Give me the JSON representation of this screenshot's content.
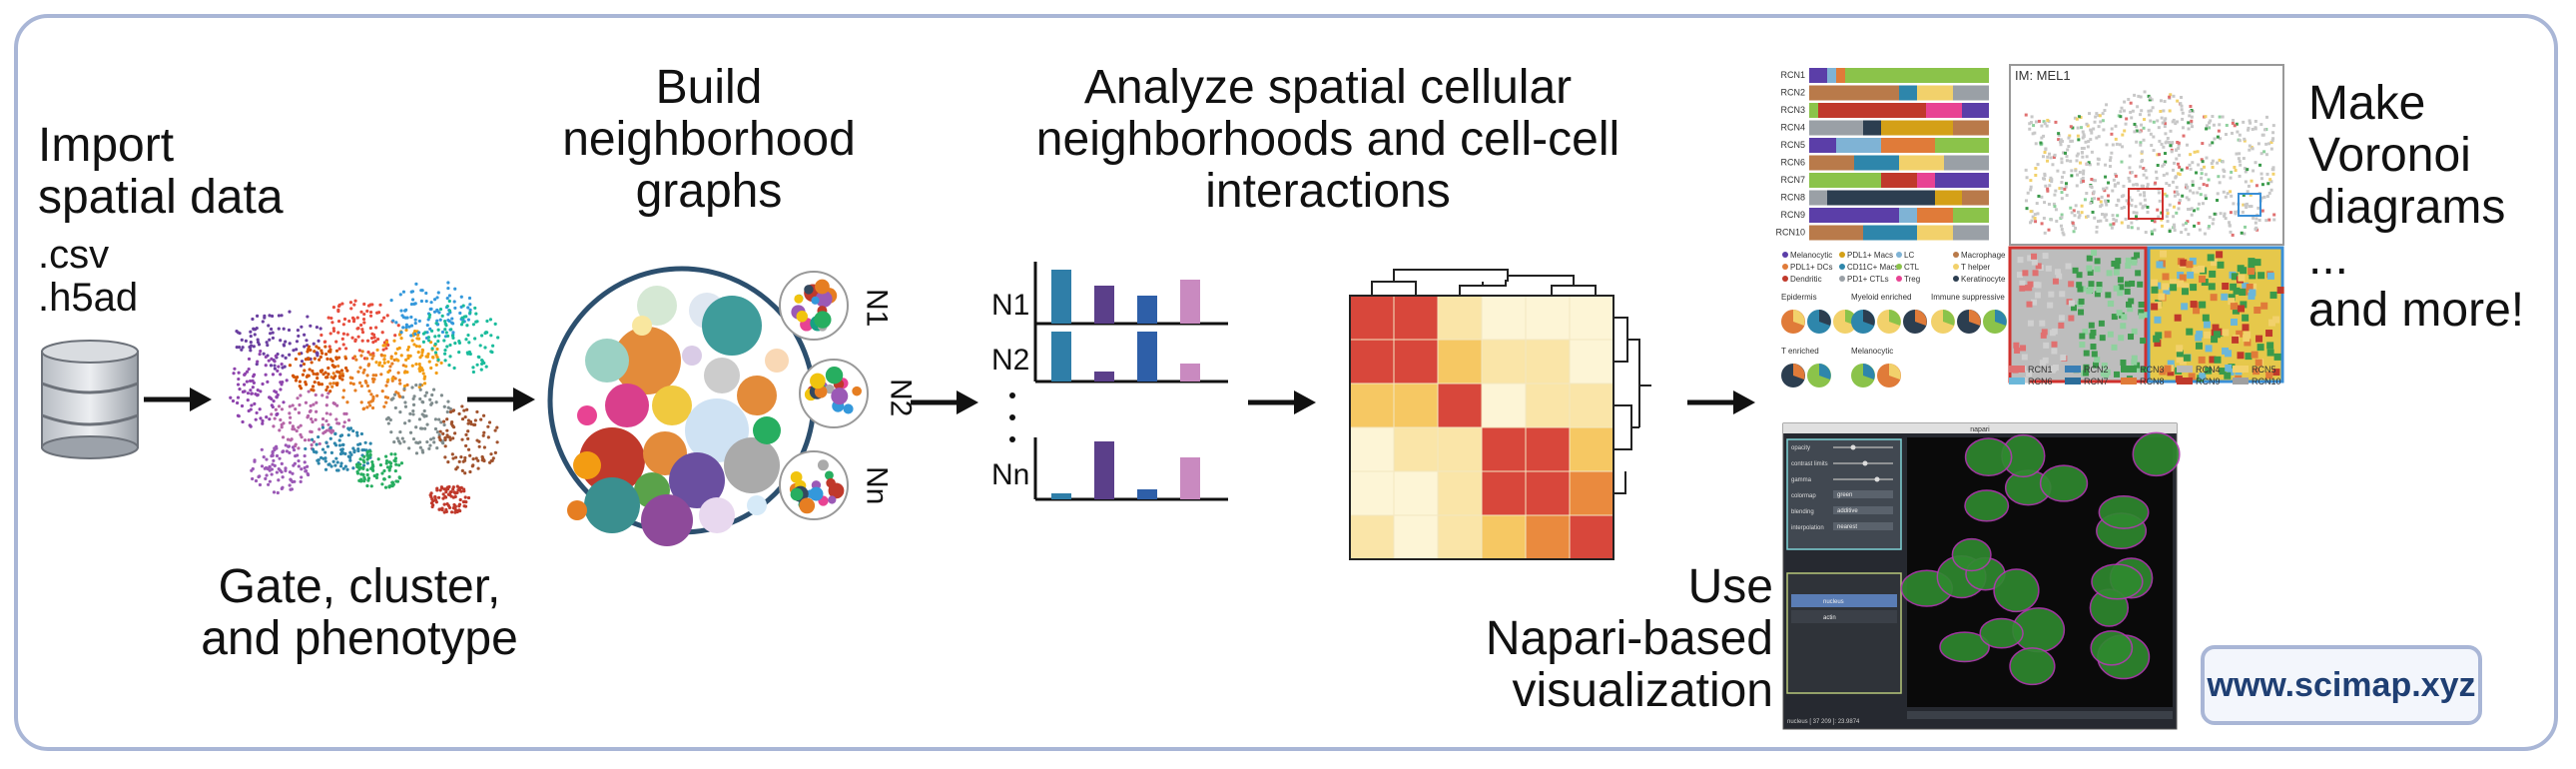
{
  "import": {
    "title_line1": "Import",
    "title_line2": "spatial data",
    "fmt1": ".csv",
    "fmt2": ".h5ad"
  },
  "gate": {
    "line1": "Gate, cluster,",
    "line2": "and phenotype"
  },
  "build": {
    "line1": "Build",
    "line2": "neighborhood",
    "line3": "graphs",
    "n_labels": [
      "N1",
      "N2",
      "Nn"
    ]
  },
  "analyze": {
    "line1": "Analyze spatial cellular",
    "line2": "neighborhoods and cell-cell",
    "line3": "interactions",
    "n_labels": [
      "N1",
      "N2",
      "Nn"
    ],
    "dots": ".\n.\n."
  },
  "voronoi": {
    "line1": "Make",
    "line2": "Voronoi",
    "line3": "diagrams",
    "line4": "...",
    "line5": "and more!",
    "im_label": "IM: MEL1"
  },
  "rcn": {
    "rows": [
      "RCN1",
      "RCN2",
      "RCN3",
      "RCN4",
      "RCN5",
      "RCN6",
      "RCN7",
      "RCN8",
      "RCN9",
      "RCN10"
    ],
    "legend": [
      "RCN1",
      "RCN2",
      "RCN3",
      "RCN4",
      "RCN5",
      "RCN6",
      "RCN7",
      "RCN8",
      "RCN9",
      "RCN10"
    ],
    "celltypes": [
      "Melanocytic",
      "PDL1+ Macs",
      "LC",
      "Macrophage",
      "PDL1+ DCs",
      "CD11C+ Macs",
      "CTL",
      "T helper",
      "Dendritic",
      "PD1+ CTLs",
      "Treg",
      "Keratinocyte"
    ],
    "pie_groups": [
      "Epidermis",
      "Myeloid enriched",
      "Immune suppressive",
      "T enriched",
      "Melanocytic"
    ],
    "colors": [
      "#5b3ea8",
      "#d4a017",
      "#7fb3d5",
      "#b97a4a",
      "#e07b39",
      "#2e86ab",
      "#8bc34a",
      "#f2d16b",
      "#c0392b",
      "#9aa0a6",
      "#e84393",
      "#2c3e50"
    ]
  },
  "napari": {
    "title": "napari",
    "controls": [
      "opacity",
      "contrast limits",
      "gamma",
      "colormap",
      "blending",
      "interpolation"
    ],
    "colormap_value": "green",
    "blending_value": "additive",
    "interp_value": "nearest",
    "layers": [
      "nucleus",
      "actin"
    ],
    "status": "nucleus [ 37 209 ]: 23.9874"
  },
  "use": {
    "line1": "Use",
    "line2": "Napari-based",
    "line3": "visualization"
  },
  "url": "www.scimap.xyz",
  "colors": {
    "frame": "#a9b6d6",
    "url_text": "#1f3f73"
  }
}
